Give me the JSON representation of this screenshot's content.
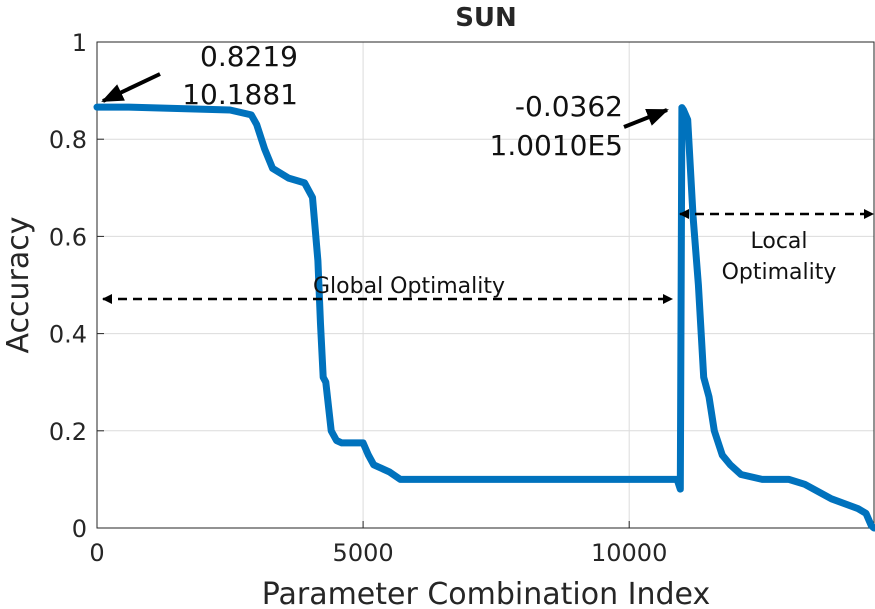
{
  "chart_data": {
    "type": "line",
    "title": "SUN",
    "xlabel": "Parameter Combination Index",
    "ylabel": "Accuracy",
    "xlim": [
      0,
      14600
    ],
    "ylim": [
      0,
      1
    ],
    "grid": true,
    "legend": "none",
    "line_color": "#0072BD",
    "x_ticks": [
      0,
      5000,
      10000
    ],
    "x_tick_labels": [
      "0",
      "5000",
      "10000"
    ],
    "y_ticks": [
      0,
      0.2,
      0.4,
      0.6,
      0.8,
      1
    ],
    "y_tick_labels": [
      "0",
      "0.2",
      "0.4",
      "0.6",
      "0.8",
      "1"
    ],
    "series": [
      {
        "x": [
          0,
          600,
          2500,
          2900,
          3000,
          3150,
          3300,
          3600,
          3900,
          4050,
          4150,
          4200,
          4250,
          4300,
          4400,
          4500,
          4600,
          5000,
          5100,
          5200,
          5500,
          5700,
          7000,
          9000,
          10900,
          10960,
          10990,
          11020,
          11100,
          11200,
          11300,
          11400,
          11500,
          11600,
          11750,
          11900,
          12100,
          12500,
          13000,
          13300,
          13800,
          14300,
          14450,
          14550,
          14600
        ],
        "y": [
          0.866,
          0.866,
          0.86,
          0.85,
          0.83,
          0.78,
          0.74,
          0.72,
          0.71,
          0.68,
          0.55,
          0.42,
          0.31,
          0.3,
          0.2,
          0.18,
          0.175,
          0.175,
          0.15,
          0.13,
          0.115,
          0.1,
          0.1,
          0.1,
          0.1,
          0.08,
          0.865,
          0.86,
          0.84,
          0.64,
          0.5,
          0.31,
          0.27,
          0.2,
          0.15,
          0.13,
          0.11,
          0.1,
          0.1,
          0.09,
          0.06,
          0.04,
          0.03,
          0.005,
          0.0
        ]
      }
    ],
    "annotations": [
      {
        "id": "start",
        "lines": [
          "0.8219",
          "10.1881"
        ]
      },
      {
        "id": "peak",
        "lines": [
          "-0.0362",
          "1.0010E5"
        ]
      },
      {
        "id": "global",
        "text": "Global Optimality"
      },
      {
        "id": "local",
        "lines": [
          "Local",
          "Optimality"
        ]
      }
    ]
  }
}
